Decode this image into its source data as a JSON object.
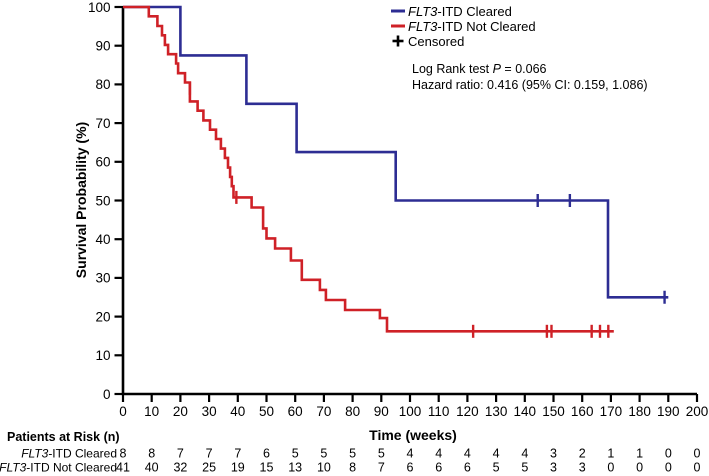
{
  "chart_data": {
    "type": "line",
    "subtype": "kaplan-meier-step",
    "title": "",
    "xlabel": "Time (weeks)",
    "ylabel": "Survival Probability (%)",
    "xlim": [
      0,
      200
    ],
    "ylim": [
      0,
      100
    ],
    "xticks": [
      0,
      10,
      20,
      30,
      40,
      50,
      60,
      70,
      80,
      90,
      100,
      110,
      120,
      130,
      140,
      150,
      160,
      170,
      180,
      190,
      200
    ],
    "yticks": [
      0,
      10,
      20,
      30,
      40,
      50,
      60,
      70,
      80,
      90,
      100
    ],
    "grid": false,
    "legend_position": "top-right",
    "axis_color": "#000000",
    "series": [
      {
        "name": "FLT3-ITD Cleared",
        "label_italic": "FLT3",
        "label_rest": "-ITD Cleared",
        "color": "#2d2d93",
        "steps": [
          [
            0,
            100
          ],
          [
            20,
            87.5
          ],
          [
            43,
            75
          ],
          [
            60.5,
            62.5
          ],
          [
            95,
            50
          ],
          [
            169,
            25
          ]
        ],
        "end_week": 190,
        "censored": [
          [
            144.5,
            50
          ],
          [
            155.7,
            50
          ],
          [
            188.7,
            25
          ]
        ]
      },
      {
        "name": "FLT3-ITD Not Cleared",
        "label_italic": "FLT3",
        "label_rest": "-ITD Not Cleared",
        "color": "#cf2127",
        "steps": [
          [
            0,
            100
          ],
          [
            9,
            97.6
          ],
          [
            12,
            95.1
          ],
          [
            13.6,
            92.7
          ],
          [
            14.6,
            90.2
          ],
          [
            15.7,
            87.8
          ],
          [
            18.5,
            85.4
          ],
          [
            19.2,
            82.9
          ],
          [
            21.6,
            80.5
          ],
          [
            23.3,
            75.6
          ],
          [
            26,
            73.2
          ],
          [
            28,
            70.7
          ],
          [
            30.3,
            68.3
          ],
          [
            32.4,
            65.9
          ],
          [
            34.1,
            63.4
          ],
          [
            35.5,
            61
          ],
          [
            36.6,
            58.5
          ],
          [
            37.3,
            56.1
          ],
          [
            37.9,
            53.7
          ],
          [
            38.5,
            50.8
          ],
          [
            44.8,
            48.2
          ],
          [
            48.8,
            42.8
          ],
          [
            50,
            40.2
          ],
          [
            53,
            37.6
          ],
          [
            58.5,
            34.5
          ],
          [
            62.3,
            29.5
          ],
          [
            68.6,
            26.9
          ],
          [
            70.7,
            24.3
          ],
          [
            77.4,
            21.7
          ],
          [
            89.5,
            19.6
          ],
          [
            92,
            16.2
          ]
        ],
        "end_week": 171,
        "censored": [
          [
            23.3,
            79
          ],
          [
            39.5,
            50.8
          ],
          [
            122,
            16.2
          ],
          [
            147.7,
            16.2
          ],
          [
            149.3,
            16.2
          ],
          [
            163.3,
            16.2
          ],
          [
            166.2,
            16.2
          ],
          [
            169.1,
            16.2
          ]
        ]
      }
    ],
    "censored_legend_label": "Censored",
    "annotations": [
      {
        "pre": "Log Rank test ",
        "italic": "P",
        "post": " = 0.066"
      },
      {
        "pre": "Hazard ratio: 0.416 (95% CI: 0.159, 1.086)",
        "italic": "",
        "post": ""
      }
    ]
  },
  "risk_table": {
    "title": "Patients at Risk (n)",
    "times": [
      0,
      10,
      20,
      30,
      40,
      50,
      60,
      70,
      80,
      90,
      100,
      110,
      120,
      130,
      140,
      150,
      160,
      170,
      180,
      190,
      200
    ],
    "rows": [
      {
        "label_italic": "FLT3",
        "label_rest": "-ITD Cleared",
        "counts": [
          8,
          8,
          7,
          7,
          7,
          6,
          5,
          5,
          5,
          5,
          4,
          4,
          4,
          4,
          4,
          3,
          2,
          1,
          1,
          0,
          0
        ]
      },
      {
        "label_italic": "FLT3",
        "label_rest": "-ITD Not Cleared",
        "counts": [
          41,
          40,
          32,
          25,
          19,
          15,
          13,
          10,
          8,
          7,
          6,
          6,
          6,
          5,
          5,
          3,
          3,
          0,
          0,
          0,
          0
        ]
      }
    ]
  }
}
